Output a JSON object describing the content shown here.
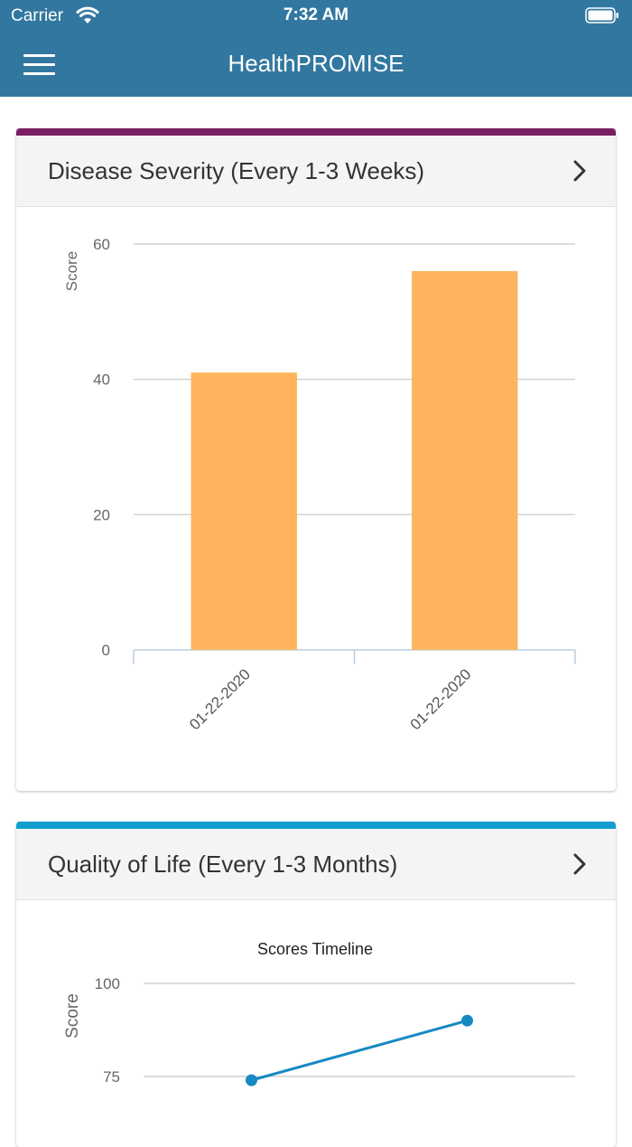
{
  "status_bar": {
    "carrier": "Carrier",
    "time": "7:32 AM"
  },
  "app_bar": {
    "title": "HealthPROMISE",
    "menu_icon": "hamburger-menu-icon"
  },
  "cards": [
    {
      "title": "Disease Severity (Every 1-3 Weeks)",
      "accent_color": "#7a1f63",
      "chevron_icon": "chevron-right-icon"
    },
    {
      "title": "Quality of Life (Every 1-3 Months)",
      "accent_color": "#129fcf",
      "chevron_icon": "chevron-right-icon"
    }
  ],
  "chart_data": [
    {
      "type": "bar",
      "categories": [
        "01-22-2020",
        "01-22-2020"
      ],
      "values": [
        41,
        56
      ],
      "ylabel": "Score",
      "ylim": [
        0,
        60
      ],
      "yticks": [
        0,
        20,
        40,
        60
      ],
      "bar_color": "#fdb45c",
      "grid": true
    },
    {
      "type": "line",
      "title": "Scores Timeline",
      "values": [
        74,
        90
      ],
      "ylabel": "Score",
      "yticks": [
        75,
        100
      ],
      "line_color": "#1789c2",
      "grid": true
    }
  ]
}
